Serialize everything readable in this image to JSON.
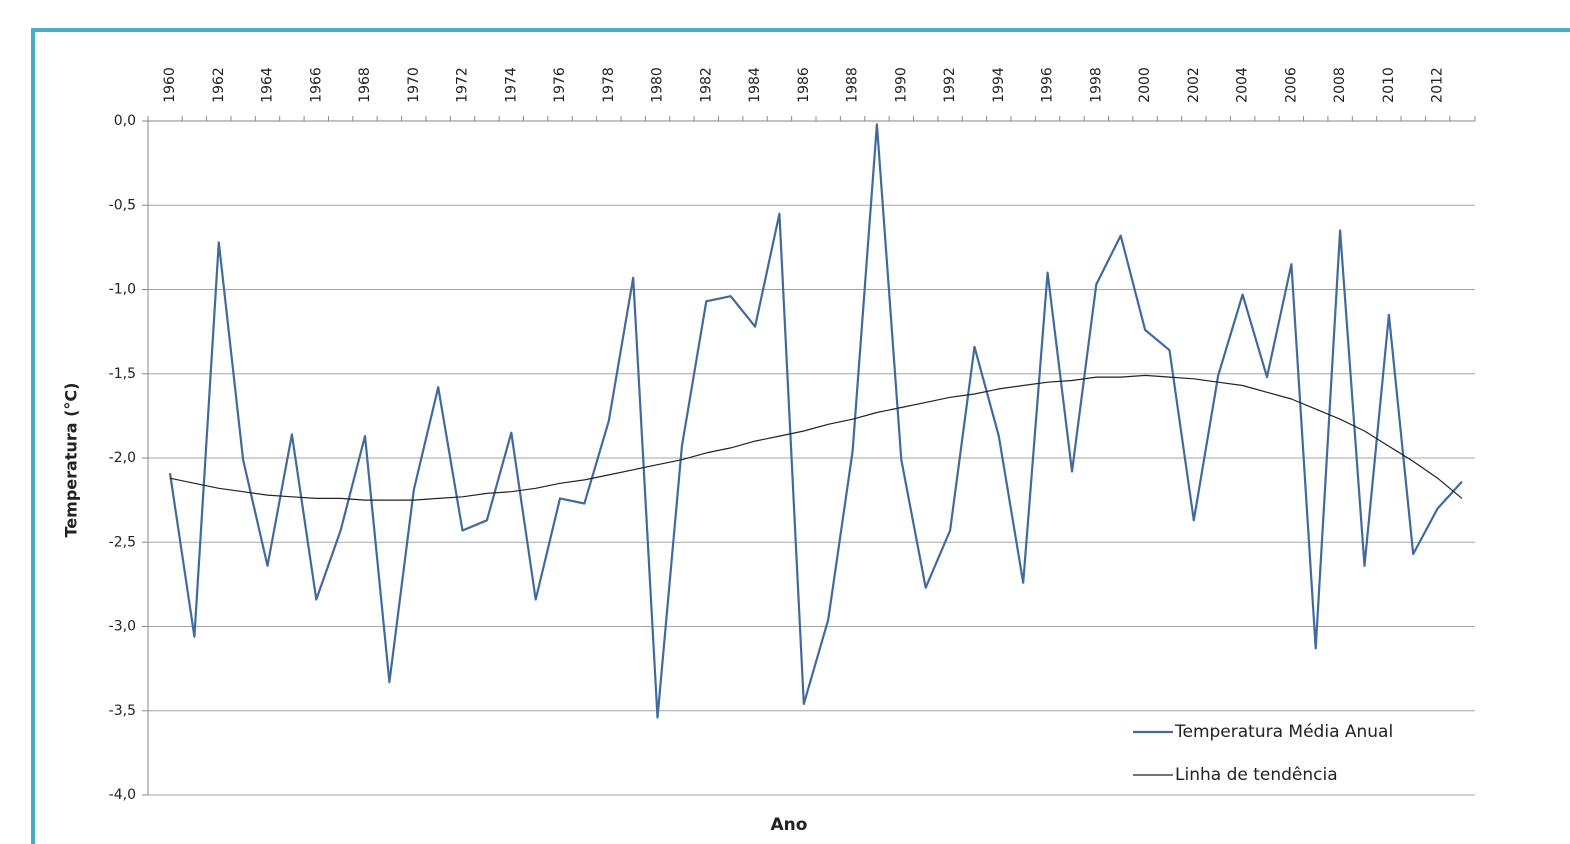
{
  "chart_data": {
    "type": "line",
    "x_label": "Ano",
    "y_label": "Temperatura (°C)",
    "xaxis_position": "top",
    "categories": [
      "1960",
      null,
      "1962",
      null,
      "1964",
      null,
      "1966",
      null,
      "1968",
      null,
      "1970",
      null,
      "1972",
      null,
      "1974",
      null,
      "1976",
      null,
      "1978",
      null,
      "1980",
      null,
      "1982",
      null,
      "1984",
      null,
      "1986",
      null,
      "1988",
      null,
      "1990",
      null,
      "1992",
      null,
      "1994",
      null,
      "1996",
      null,
      "1998",
      null,
      "2000",
      null,
      "2002",
      null,
      "2004",
      null,
      "2006",
      null,
      "2008",
      null,
      "2010",
      null,
      "2012",
      null
    ],
    "series": [
      {
        "name": "Temperatura Média Anual",
        "color": "#416a9c",
        "width": 2.2,
        "values": [
          -2.09,
          -3.06,
          -0.72,
          -2.01,
          -2.64,
          -1.86,
          -2.84,
          -2.43,
          -1.87,
          -3.33,
          -2.19,
          -1.58,
          -2.43,
          -2.37,
          -1.85,
          -2.84,
          -2.24,
          -2.27,
          -1.78,
          -0.93,
          -3.54,
          -1.93,
          -1.07,
          -1.04,
          -1.22,
          -0.55,
          -3.46,
          -2.96,
          -1.96,
          -0.02,
          -2.01,
          -2.77,
          -2.43,
          -1.34,
          -1.87,
          -2.74,
          -0.9,
          -2.08,
          -0.97,
          -0.68,
          -1.24,
          -1.36,
          -2.37,
          -1.51,
          -1.03,
          -1.52,
          -0.85,
          -3.13,
          -0.65,
          -2.64,
          -1.15,
          -2.57,
          -2.3,
          -2.14
        ]
      },
      {
        "name": "Linha de tendência",
        "color": "#222222",
        "width": 1.2,
        "values": [
          -2.12,
          -2.15,
          -2.18,
          -2.2,
          -2.22,
          -2.23,
          -2.24,
          -2.24,
          -2.25,
          -2.25,
          -2.25,
          -2.24,
          -2.23,
          -2.21,
          -2.2,
          -2.18,
          -2.15,
          -2.13,
          -2.1,
          -2.07,
          -2.04,
          -2.01,
          -1.97,
          -1.94,
          -1.9,
          -1.87,
          -1.84,
          -1.8,
          -1.77,
          -1.73,
          -1.7,
          -1.67,
          -1.64,
          -1.62,
          -1.59,
          -1.57,
          -1.55,
          -1.54,
          -1.52,
          -1.52,
          -1.51,
          -1.52,
          -1.53,
          -1.55,
          -1.57,
          -1.61,
          -1.65,
          -1.71,
          -1.77,
          -1.84,
          -1.93,
          -2.02,
          -2.12,
          -2.24
        ]
      }
    ],
    "ylim": [
      -4,
      0
    ],
    "yticks": [
      {
        "value": 0,
        "label": "0,0"
      },
      {
        "value": -0.5,
        "label": "-0,5"
      },
      {
        "value": -1,
        "label": "-1,0"
      },
      {
        "value": -1.5,
        "label": "-1,5"
      },
      {
        "value": -2,
        "label": "-2,0"
      },
      {
        "value": -2.5,
        "label": "-2,5"
      },
      {
        "value": -3,
        "label": "-3,0"
      },
      {
        "value": -3.5,
        "label": "-3,5"
      },
      {
        "value": -4,
        "label": "-4,0"
      }
    ],
    "grid": true,
    "legend": "lower right"
  }
}
